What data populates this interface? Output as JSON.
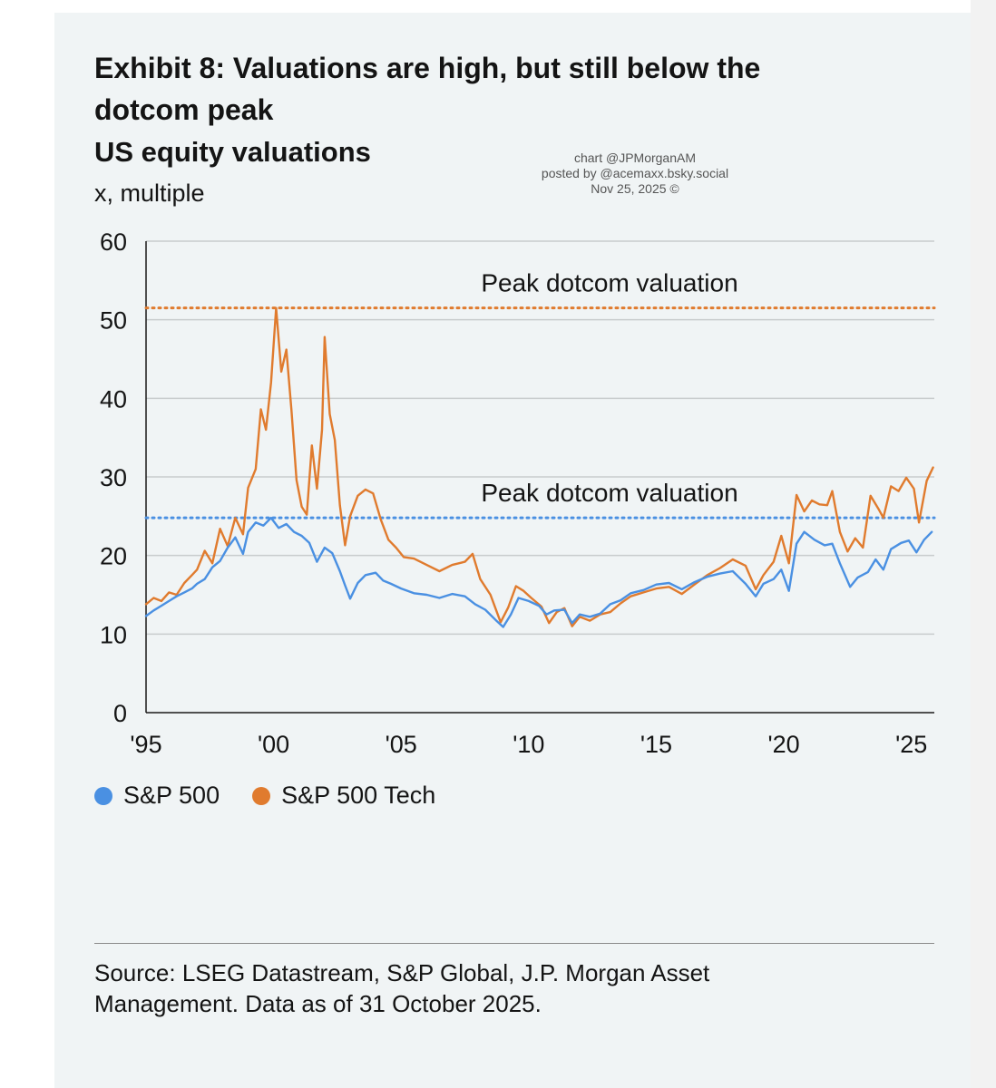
{
  "header": {
    "title": "Exhibit 8: Valuations are high, but still below the dotcom peak",
    "subtitle": "US equity valuations",
    "unit": "x, multiple"
  },
  "credit": {
    "line1": "chart @JPMorganAM",
    "line2": "posted by @acemaxx.bsky.social",
    "line3": "Nov 25, 2025 ©"
  },
  "footer": {
    "source": "Source: LSEG Datastream, S&P Global, J.P. Morgan Asset Management. Data as of 31 October 2025."
  },
  "colors": {
    "sp500": "#4a90e2",
    "tech": "#e07b2e",
    "grid": "#c8cccd",
    "axis": "#1a1a1a"
  },
  "chart_data": {
    "type": "line",
    "title": "US equity valuations",
    "ylabel": "x, multiple",
    "xlim": [
      1995,
      2025.9
    ],
    "ylim": [
      0,
      60
    ],
    "yticks": [
      0,
      10,
      20,
      30,
      40,
      50,
      60
    ],
    "xticks": [
      {
        "value": 1995,
        "label": "'95"
      },
      {
        "value": 2000,
        "label": "'00"
      },
      {
        "value": 2005,
        "label": "'05"
      },
      {
        "value": 2010,
        "label": "'10"
      },
      {
        "value": 2015,
        "label": "'15"
      },
      {
        "value": 2020,
        "label": "'20"
      },
      {
        "value": 2025,
        "label": "'25"
      }
    ],
    "grid": true,
    "legend": "bottom-left",
    "series": [
      {
        "name": "S&P 500",
        "points": [
          [
            1995.0,
            12.3
          ],
          [
            1995.3,
            13.0
          ],
          [
            1995.6,
            13.6
          ],
          [
            1995.9,
            14.2
          ],
          [
            1996.2,
            14.8
          ],
          [
            1996.5,
            15.3
          ],
          [
            1996.8,
            15.8
          ],
          [
            1997.0,
            16.4
          ],
          [
            1997.3,
            17.0
          ],
          [
            1997.6,
            18.5
          ],
          [
            1997.9,
            19.3
          ],
          [
            1998.2,
            21.0
          ],
          [
            1998.5,
            22.3
          ],
          [
            1998.8,
            20.2
          ],
          [
            1999.0,
            23.0
          ],
          [
            1999.3,
            24.2
          ],
          [
            1999.6,
            23.8
          ],
          [
            1999.9,
            24.8
          ],
          [
            2000.2,
            23.5
          ],
          [
            2000.5,
            24.0
          ],
          [
            2000.8,
            23.0
          ],
          [
            2001.1,
            22.5
          ],
          [
            2001.4,
            21.6
          ],
          [
            2001.7,
            19.2
          ],
          [
            2002.0,
            21.0
          ],
          [
            2002.3,
            20.3
          ],
          [
            2002.6,
            18.0
          ],
          [
            2002.8,
            16.2
          ],
          [
            2003.0,
            14.5
          ],
          [
            2003.3,
            16.5
          ],
          [
            2003.6,
            17.5
          ],
          [
            2004.0,
            17.8
          ],
          [
            2004.3,
            16.8
          ],
          [
            2004.6,
            16.4
          ],
          [
            2005.0,
            15.8
          ],
          [
            2005.5,
            15.2
          ],
          [
            2006.0,
            15.0
          ],
          [
            2006.5,
            14.6
          ],
          [
            2007.0,
            15.1
          ],
          [
            2007.5,
            14.8
          ],
          [
            2007.9,
            13.8
          ],
          [
            2008.3,
            13.1
          ],
          [
            2008.7,
            11.8
          ],
          [
            2009.0,
            10.9
          ],
          [
            2009.3,
            12.5
          ],
          [
            2009.6,
            14.6
          ],
          [
            2010.0,
            14.2
          ],
          [
            2010.4,
            13.6
          ],
          [
            2010.7,
            12.5
          ],
          [
            2011.0,
            13.0
          ],
          [
            2011.4,
            13.1
          ],
          [
            2011.7,
            11.4
          ],
          [
            2012.0,
            12.5
          ],
          [
            2012.4,
            12.2
          ],
          [
            2012.8,
            12.6
          ],
          [
            2013.2,
            13.8
          ],
          [
            2013.6,
            14.3
          ],
          [
            2014.0,
            15.2
          ],
          [
            2014.5,
            15.6
          ],
          [
            2015.0,
            16.3
          ],
          [
            2015.5,
            16.5
          ],
          [
            2016.0,
            15.7
          ],
          [
            2016.5,
            16.6
          ],
          [
            2017.0,
            17.3
          ],
          [
            2017.5,
            17.7
          ],
          [
            2018.0,
            18.0
          ],
          [
            2018.5,
            16.4
          ],
          [
            2018.9,
            14.8
          ],
          [
            2019.2,
            16.4
          ],
          [
            2019.6,
            17.0
          ],
          [
            2019.9,
            18.2
          ],
          [
            2020.2,
            15.5
          ],
          [
            2020.5,
            21.5
          ],
          [
            2020.8,
            23.0
          ],
          [
            2021.2,
            22.0
          ],
          [
            2021.6,
            21.3
          ],
          [
            2021.9,
            21.5
          ],
          [
            2022.2,
            19.0
          ],
          [
            2022.6,
            16.0
          ],
          [
            2022.9,
            17.2
          ],
          [
            2023.3,
            17.9
          ],
          [
            2023.6,
            19.5
          ],
          [
            2023.9,
            18.2
          ],
          [
            2024.2,
            20.8
          ],
          [
            2024.6,
            21.6
          ],
          [
            2024.9,
            21.9
          ],
          [
            2025.2,
            20.4
          ],
          [
            2025.5,
            22.0
          ],
          [
            2025.8,
            23.0
          ]
        ]
      },
      {
        "name": "S&P 500 Tech",
        "points": [
          [
            1995.0,
            13.8
          ],
          [
            1995.3,
            14.6
          ],
          [
            1995.6,
            14.2
          ],
          [
            1995.9,
            15.3
          ],
          [
            1996.2,
            15.0
          ],
          [
            1996.5,
            16.5
          ],
          [
            1996.8,
            17.5
          ],
          [
            1997.0,
            18.2
          ],
          [
            1997.3,
            20.6
          ],
          [
            1997.6,
            19.0
          ],
          [
            1997.9,
            23.4
          ],
          [
            1998.2,
            21.2
          ],
          [
            1998.5,
            24.8
          ],
          [
            1998.8,
            22.7
          ],
          [
            1999.0,
            28.6
          ],
          [
            1999.3,
            31.0
          ],
          [
            1999.5,
            38.6
          ],
          [
            1999.7,
            36.0
          ],
          [
            1999.9,
            42.0
          ],
          [
            2000.1,
            51.5
          ],
          [
            2000.3,
            43.4
          ],
          [
            2000.5,
            46.2
          ],
          [
            2000.7,
            38.5
          ],
          [
            2000.9,
            29.6
          ],
          [
            2001.1,
            26.2
          ],
          [
            2001.3,
            25.2
          ],
          [
            2001.5,
            34.0
          ],
          [
            2001.7,
            28.5
          ],
          [
            2001.9,
            36.0
          ],
          [
            2002.0,
            47.8
          ],
          [
            2002.2,
            38.0
          ],
          [
            2002.4,
            34.7
          ],
          [
            2002.6,
            26.4
          ],
          [
            2002.8,
            21.3
          ],
          [
            2003.0,
            25.0
          ],
          [
            2003.3,
            27.6
          ],
          [
            2003.6,
            28.4
          ],
          [
            2003.9,
            27.9
          ],
          [
            2004.2,
            24.6
          ],
          [
            2004.5,
            22.0
          ],
          [
            2004.8,
            21.0
          ],
          [
            2005.1,
            19.8
          ],
          [
            2005.5,
            19.6
          ],
          [
            2006.0,
            18.8
          ],
          [
            2006.5,
            18.0
          ],
          [
            2007.0,
            18.8
          ],
          [
            2007.5,
            19.2
          ],
          [
            2007.8,
            20.2
          ],
          [
            2008.1,
            17.0
          ],
          [
            2008.5,
            15.0
          ],
          [
            2008.9,
            11.5
          ],
          [
            2009.2,
            13.4
          ],
          [
            2009.5,
            16.1
          ],
          [
            2009.8,
            15.5
          ],
          [
            2010.1,
            14.6
          ],
          [
            2010.5,
            13.5
          ],
          [
            2010.8,
            11.4
          ],
          [
            2011.1,
            12.8
          ],
          [
            2011.4,
            13.3
          ],
          [
            2011.7,
            11.0
          ],
          [
            2012.0,
            12.2
          ],
          [
            2012.4,
            11.7
          ],
          [
            2012.8,
            12.5
          ],
          [
            2013.2,
            12.8
          ],
          [
            2013.6,
            13.9
          ],
          [
            2014.0,
            14.8
          ],
          [
            2014.5,
            15.3
          ],
          [
            2015.0,
            15.8
          ],
          [
            2015.5,
            16.0
          ],
          [
            2016.0,
            15.1
          ],
          [
            2016.5,
            16.3
          ],
          [
            2017.0,
            17.5
          ],
          [
            2017.5,
            18.4
          ],
          [
            2018.0,
            19.5
          ],
          [
            2018.5,
            18.7
          ],
          [
            2018.9,
            15.7
          ],
          [
            2019.2,
            17.5
          ],
          [
            2019.6,
            19.2
          ],
          [
            2019.9,
            22.5
          ],
          [
            2020.2,
            19.0
          ],
          [
            2020.5,
            27.7
          ],
          [
            2020.8,
            25.6
          ],
          [
            2021.1,
            27.0
          ],
          [
            2021.4,
            26.5
          ],
          [
            2021.7,
            26.4
          ],
          [
            2021.9,
            28.2
          ],
          [
            2022.2,
            23.0
          ],
          [
            2022.5,
            20.5
          ],
          [
            2022.8,
            22.2
          ],
          [
            2023.1,
            21.0
          ],
          [
            2023.4,
            27.6
          ],
          [
            2023.7,
            26.0
          ],
          [
            2023.9,
            24.8
          ],
          [
            2024.2,
            28.8
          ],
          [
            2024.5,
            28.2
          ],
          [
            2024.8,
            29.9
          ],
          [
            2025.1,
            28.5
          ],
          [
            2025.3,
            24.2
          ],
          [
            2025.6,
            29.5
          ],
          [
            2025.85,
            31.2
          ]
        ]
      }
    ],
    "reference_lines": [
      {
        "series": "S&P 500 Tech",
        "value": 51.5,
        "label": "Peak dotcom valuation"
      },
      {
        "series": "S&P 500",
        "value": 24.8,
        "label": "Peak dotcom valuation"
      }
    ]
  }
}
